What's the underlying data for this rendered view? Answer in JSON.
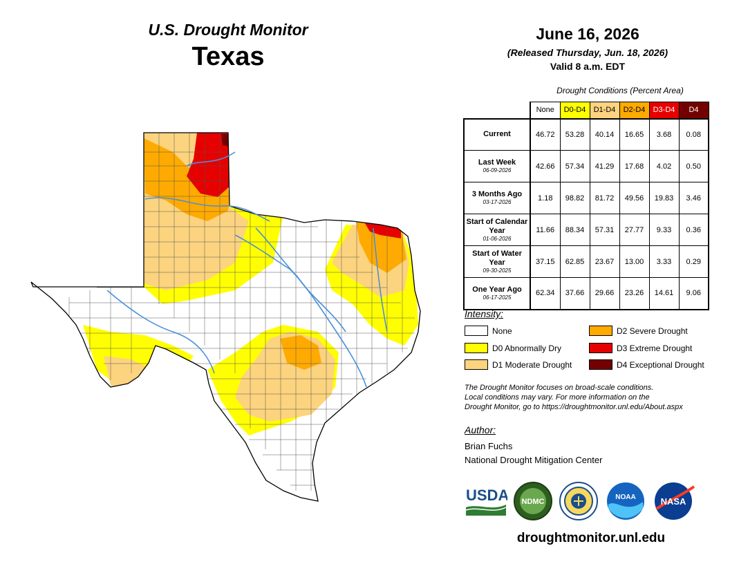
{
  "header": {
    "title": "U.S. Drought Monitor",
    "state": "Texas",
    "date": "June 16, 2026",
    "released": "(Released Thursday, Jun. 18, 2026)",
    "valid": "Valid 8 a.m. EDT"
  },
  "table": {
    "caption": "Drought Conditions (Percent Area)",
    "columns": [
      "None",
      "D0-D4",
      "D1-D4",
      "D2-D4",
      "D3-D4",
      "D4"
    ],
    "rows": [
      {
        "label": "Current",
        "date": "",
        "values": [
          "46.72",
          "53.28",
          "40.14",
          "16.65",
          "3.68",
          "0.08"
        ]
      },
      {
        "label": "Last Week",
        "date": "06-09-2026",
        "values": [
          "42.66",
          "57.34",
          "41.29",
          "17.68",
          "4.02",
          "0.50"
        ]
      },
      {
        "label": "3 Months Ago",
        "date": "03-17-2026",
        "values": [
          "1.18",
          "98.82",
          "81.72",
          "49.56",
          "19.83",
          "3.46"
        ]
      },
      {
        "label": "Start of Calendar Year",
        "date": "01-06-2026",
        "values": [
          "11.66",
          "88.34",
          "57.31",
          "27.77",
          "9.33",
          "0.36"
        ]
      },
      {
        "label": "Start of Water Year",
        "date": "09-30-2025",
        "values": [
          "37.15",
          "62.85",
          "23.67",
          "13.00",
          "3.33",
          "0.29"
        ]
      },
      {
        "label": "One Year Ago",
        "date": "06-17-2025",
        "values": [
          "62.34",
          "37.66",
          "29.66",
          "23.26",
          "14.61",
          "9.06"
        ]
      }
    ]
  },
  "legend": {
    "heading": "Intensity:",
    "items": [
      {
        "label": "None",
        "color": "#ffffff"
      },
      {
        "label": "D0 Abnormally Dry",
        "color": "#ffff00"
      },
      {
        "label": "D1 Moderate Drought",
        "color": "#fcd37f"
      },
      {
        "label": "D2 Severe Drought",
        "color": "#ffaa00"
      },
      {
        "label": "D3 Extreme Drought",
        "color": "#e60000"
      },
      {
        "label": "D4 Exceptional Drought",
        "color": "#730000"
      }
    ]
  },
  "note": {
    "line1": "The Drought Monitor focuses on broad-scale conditions.",
    "line2": "Local conditions may vary. For more information on the",
    "line3": "Drought Monitor, go to https://droughtmonitor.unl.edu/About.aspx"
  },
  "author": {
    "heading": "Author:",
    "name": "Brian Fuchs",
    "org": "National Drought Mitigation Center"
  },
  "logos": {
    "usda": "USDA",
    "ndmc": "NDMC",
    "noaa": "NOAA",
    "nasa": "NASA"
  },
  "footer": {
    "site": "droughtmonitor.unl.edu"
  },
  "colors": {
    "none": "#ffffff",
    "d0": "#ffff00",
    "d1": "#fcd37f",
    "d2": "#ffaa00",
    "d3": "#e60000",
    "d4": "#730000",
    "river": "#4a90d9"
  }
}
